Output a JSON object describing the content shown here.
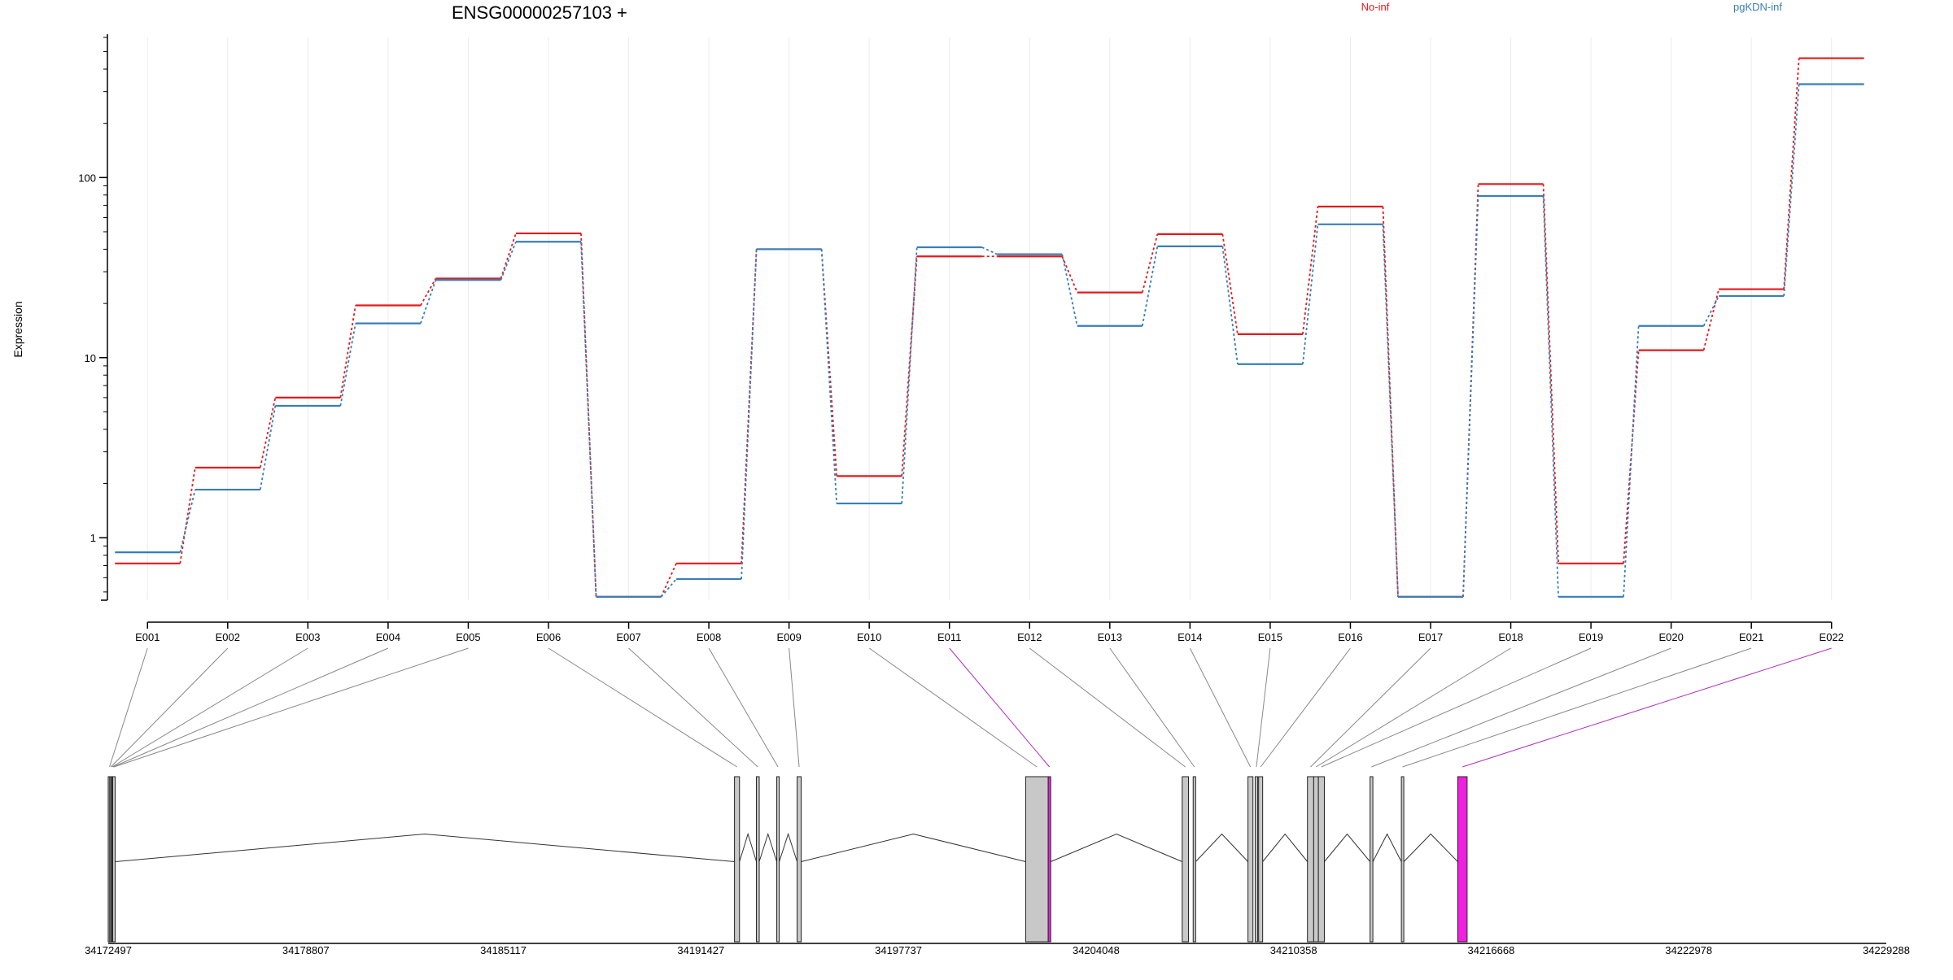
{
  "chart_data": {
    "type": "line",
    "title": "ENSG00000257103 +",
    "ylabel": "Expression",
    "xlabel": "",
    "scale": "log",
    "ylim": [
      0.45,
      600
    ],
    "yticks": [
      1,
      10,
      100
    ],
    "ytick_labels": [
      "1",
      "10",
      "100"
    ],
    "grid": true,
    "legend": "top",
    "categories": [
      "E001",
      "E002",
      "E003",
      "E004",
      "E005",
      "E006",
      "E007",
      "E008",
      "E009",
      "E010",
      "E011",
      "E012",
      "E013",
      "E014",
      "E015",
      "E016",
      "E017",
      "E018",
      "E019",
      "E020",
      "E021",
      "E022"
    ],
    "series": [
      {
        "name": "No-inf",
        "color": "#e41a1c",
        "values": [
          0.72,
          2.45,
          6.0,
          19.5,
          27.5,
          49.0,
          0.47,
          0.72,
          40.0,
          2.2,
          36.5,
          36.5,
          23.0,
          48.5,
          13.5,
          69.0,
          0.47,
          92.0,
          0.72,
          11.0,
          24.0,
          460.0
        ]
      },
      {
        "name": "pgKDN-inf",
        "color": "#377eb8",
        "values": [
          0.83,
          1.85,
          5.4,
          15.5,
          27.0,
          44.0,
          0.47,
          0.59,
          40.0,
          1.55,
          41.0,
          37.5,
          15.0,
          41.5,
          9.2,
          55.0,
          0.47,
          79.0,
          0.47,
          15.0,
          22.0,
          330.0
        ]
      }
    ],
    "highlight_color": "#f020e0",
    "exon_fill": "#c8c8c8",
    "highlighted_exons": [
      "E011",
      "E022"
    ],
    "genomic_axis": {
      "range": [
        34172497,
        34229288
      ],
      "ticks": [
        "34172497",
        "34178807",
        "34185117",
        "34191427",
        "34197737",
        "34204048",
        "34210358",
        "34216668",
        "34222978",
        "34229288"
      ]
    },
    "exon_genomic_start": [
      34172497,
      34172543,
      34172580,
      34172610,
      34172640,
      34192500,
      34193200,
      34193850,
      34194500,
      34201800,
      34202520,
      34206800,
      34207150,
      34208900,
      34209130,
      34209240,
      34210800,
      34211000,
      34211150,
      34212800,
      34213800,
      34215600
    ],
    "exon_genomic_end": [
      34172542,
      34172579,
      34172609,
      34172639,
      34172720,
      34192660,
      34193290,
      34193930,
      34194630,
      34202520,
      34202600,
      34207000,
      34207230,
      34209060,
      34209200,
      34209370,
      34211000,
      34211150,
      34211340,
      34212890,
      34213800,
      34215900
    ]
  }
}
